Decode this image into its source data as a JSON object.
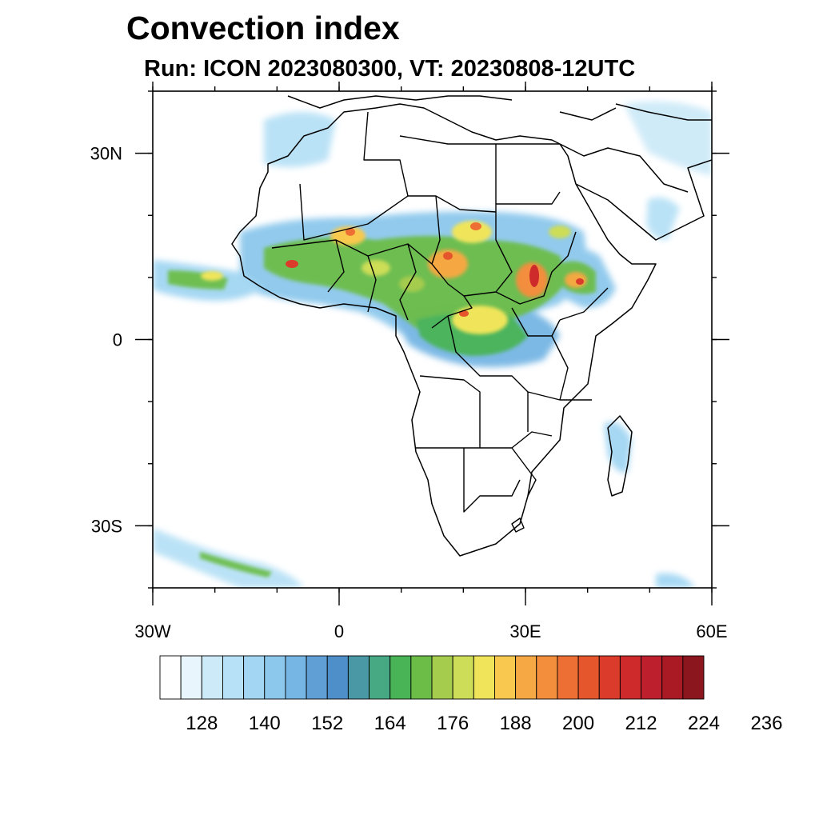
{
  "title": "Convection index",
  "subtitle": "Run: ICON 2023080300,  VT: 20230808-12UTC",
  "map": {
    "lon_range": [
      -30,
      60
    ],
    "lat_range": [
      -40,
      40
    ],
    "lon_ticks": [
      {
        "value": -30,
        "label": "30W"
      },
      {
        "value": 0,
        "label": "0"
      },
      {
        "value": 30,
        "label": "30E"
      },
      {
        "value": 60,
        "label": "60E"
      }
    ],
    "lat_ticks": [
      {
        "value": 30,
        "label": "30N"
      },
      {
        "value": 0,
        "label": "0"
      },
      {
        "value": -30,
        "label": "30S"
      }
    ],
    "minor_lon_step": 10,
    "minor_lat_step": 10
  },
  "colorbar": {
    "colors": [
      "#ffffff",
      "#e8f5fc",
      "#cdeaf8",
      "#b7e1f6",
      "#a2d6f3",
      "#8cc8ec",
      "#76b6e4",
      "#5f9fd6",
      "#4f8fc9",
      "#4a98a6",
      "#47a884",
      "#49b456",
      "#6cbd48",
      "#a6cc4e",
      "#cddd57",
      "#f0e55a",
      "#f8c94e",
      "#f5a843",
      "#f28e3c",
      "#ee6f33",
      "#e5562d",
      "#db3b2a",
      "#cf2a2b",
      "#be1f2c",
      "#a91a24",
      "#8b161e"
    ],
    "labels": [
      {
        "text": "128",
        "after_box": 2
      },
      {
        "text": "140",
        "after_box": 5
      },
      {
        "text": "152",
        "after_box": 8
      },
      {
        "text": "164",
        "after_box": 11
      },
      {
        "text": "176",
        "after_box": 14
      },
      {
        "text": "188",
        "after_box": 17
      },
      {
        "text": "200",
        "after_box": 20
      },
      {
        "text": "212",
        "after_box": 23
      },
      {
        "text": "224",
        "after_box": 26
      },
      {
        "text": "236",
        "after_box": 29
      }
    ]
  }
}
